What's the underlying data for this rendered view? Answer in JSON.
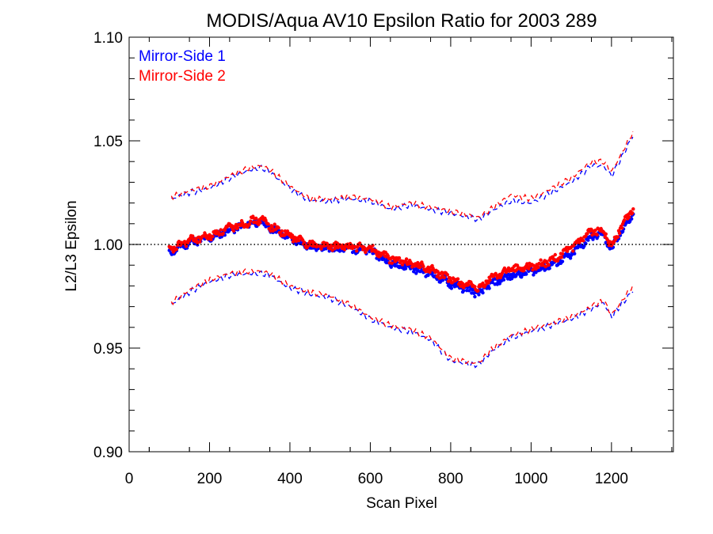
{
  "chart_data": {
    "type": "scatter",
    "title": "MODIS/Aqua AV10 Epsilon Ratio for 2003 289",
    "xlabel": "Scan Pixel",
    "ylabel": "L2/L3 Epsilon",
    "xlim": [
      0,
      1354
    ],
    "ylim": [
      0.9,
      1.1
    ],
    "x_ticks": [
      0,
      200,
      400,
      600,
      800,
      1000,
      1200
    ],
    "x_tick_labels": [
      "0",
      "200",
      "400",
      "600",
      "800",
      "1000",
      "1200"
    ],
    "y_ticks": [
      0.9,
      0.95,
      1.0,
      1.05,
      1.1
    ],
    "y_tick_labels": [
      "0.90",
      "0.95",
      "1.00",
      "1.05",
      "1.10"
    ],
    "reference_line": {
      "y": 1.0,
      "style": "dotted"
    },
    "legend_position": "top-left",
    "grid": false,
    "series": [
      {
        "name": "Mirror-Side 1",
        "color": "#0000ff",
        "mean": {
          "x": [
            100,
            150,
            200,
            250,
            300,
            330,
            350,
            400,
            450,
            500,
            550,
            600,
            650,
            700,
            750,
            800,
            850,
            870,
            900,
            950,
            1000,
            1050,
            1100,
            1150,
            1180,
            1200,
            1220,
            1255
          ],
          "y": [
            0.996,
            1.001,
            1.003,
            1.007,
            1.01,
            1.011,
            1.008,
            1.003,
            0.999,
            0.998,
            0.998,
            0.997,
            0.991,
            0.989,
            0.986,
            0.981,
            0.978,
            0.976,
            0.981,
            0.985,
            0.987,
            0.99,
            0.995,
            1.004,
            1.005,
            0.997,
            1.005,
            1.015
          ]
        },
        "upper": {
          "x": [
            105,
            150,
            200,
            250,
            300,
            330,
            350,
            400,
            450,
            500,
            550,
            600,
            650,
            700,
            750,
            800,
            850,
            870,
            900,
            950,
            1000,
            1050,
            1100,
            1150,
            1180,
            1200,
            1220,
            1255
          ],
          "y": [
            1.022,
            1.025,
            1.027,
            1.032,
            1.036,
            1.037,
            1.035,
            1.027,
            1.021,
            1.021,
            1.022,
            1.021,
            1.017,
            1.019,
            1.017,
            1.015,
            1.013,
            1.012,
            1.016,
            1.021,
            1.02,
            1.025,
            1.03,
            1.038,
            1.038,
            1.033,
            1.04,
            1.053
          ]
        },
        "lower": {
          "x": [
            105,
            150,
            200,
            250,
            300,
            330,
            350,
            400,
            450,
            500,
            550,
            600,
            650,
            700,
            750,
            800,
            850,
            870,
            900,
            950,
            1000,
            1050,
            1100,
            1150,
            1180,
            1200,
            1220,
            1255
          ],
          "y": [
            0.971,
            0.977,
            0.982,
            0.985,
            0.986,
            0.986,
            0.985,
            0.979,
            0.976,
            0.974,
            0.97,
            0.964,
            0.96,
            0.958,
            0.954,
            0.944,
            0.942,
            0.942,
            0.948,
            0.955,
            0.958,
            0.961,
            0.964,
            0.969,
            0.972,
            0.965,
            0.97,
            0.978
          ]
        }
      },
      {
        "name": "Mirror-Side 2",
        "color": "#ff0000",
        "mean": {
          "x": [
            100,
            150,
            200,
            250,
            300,
            330,
            350,
            400,
            450,
            500,
            550,
            600,
            650,
            700,
            750,
            800,
            850,
            870,
            900,
            950,
            1000,
            1050,
            1100,
            1150,
            1180,
            1200,
            1220,
            1255
          ],
          "y": [
            0.997,
            1.002,
            1.004,
            1.008,
            1.011,
            1.012,
            1.009,
            1.004,
            1.0,
            0.999,
            0.999,
            0.998,
            0.993,
            0.991,
            0.988,
            0.983,
            0.98,
            0.978,
            0.984,
            0.988,
            0.989,
            0.992,
            0.998,
            1.006,
            1.007,
            0.999,
            1.007,
            1.018
          ]
        },
        "upper": {
          "x": [
            105,
            150,
            200,
            250,
            300,
            330,
            350,
            400,
            450,
            500,
            550,
            600,
            650,
            700,
            750,
            800,
            850,
            870,
            900,
            950,
            1000,
            1050,
            1100,
            1150,
            1180,
            1200,
            1220,
            1255
          ],
          "y": [
            1.023,
            1.026,
            1.028,
            1.033,
            1.037,
            1.038,
            1.036,
            1.028,
            1.022,
            1.022,
            1.023,
            1.022,
            1.018,
            1.02,
            1.018,
            1.016,
            1.014,
            1.013,
            1.017,
            1.024,
            1.022,
            1.027,
            1.032,
            1.04,
            1.04,
            1.035,
            1.042,
            1.055
          ]
        },
        "lower": {
          "x": [
            105,
            150,
            200,
            250,
            300,
            330,
            350,
            400,
            450,
            500,
            550,
            600,
            650,
            700,
            750,
            800,
            850,
            870,
            900,
            950,
            1000,
            1050,
            1100,
            1150,
            1180,
            1200,
            1220,
            1255
          ],
          "y": [
            0.972,
            0.978,
            0.983,
            0.986,
            0.987,
            0.987,
            0.986,
            0.98,
            0.977,
            0.975,
            0.971,
            0.965,
            0.961,
            0.959,
            0.955,
            0.945,
            0.943,
            0.943,
            0.949,
            0.956,
            0.959,
            0.962,
            0.965,
            0.97,
            0.973,
            0.966,
            0.971,
            0.981
          ]
        }
      }
    ]
  }
}
